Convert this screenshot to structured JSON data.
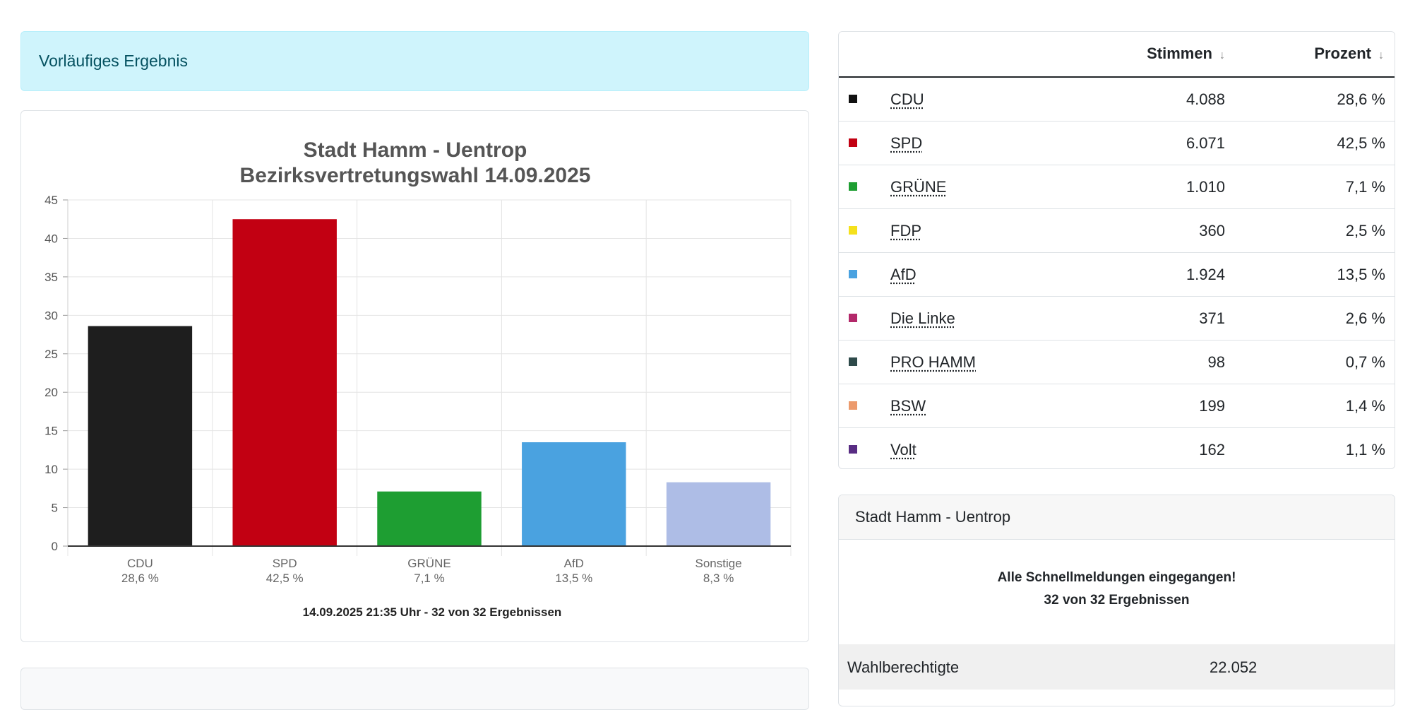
{
  "alert": {
    "text": "Vorläufiges Ergebnis"
  },
  "chart_data": {
    "type": "bar",
    "title": "Stadt Hamm - Uentrop",
    "subtitle": "Bezirksvertretungswahl 14.09.2025",
    "categories": [
      "CDU",
      "SPD",
      "GRÜNE",
      "AfD",
      "Sonstige"
    ],
    "category_sublabels": [
      "28,6 %",
      "42,5 %",
      "7,1 %",
      "13,5 %",
      "8,3 %"
    ],
    "values": [
      28.6,
      42.5,
      7.1,
      13.5,
      8.3
    ],
    "colors": [
      "#1e1e1e",
      "#c20012",
      "#1e9e32",
      "#4aa2e0",
      "#aebde6"
    ],
    "ylim": [
      0,
      45
    ],
    "yticks": [
      0,
      5,
      10,
      15,
      20,
      25,
      30,
      35,
      40,
      45
    ],
    "grid": true,
    "footer": "14.09.2025 21:35 Uhr - 32 von 32 Ergebnissen"
  },
  "table": {
    "col_votes": "Stimmen",
    "col_pct": "Prozent",
    "sort_icon": "↓",
    "rows": [
      {
        "party": "CDU",
        "votes": "4.088",
        "pct": "28,6 %",
        "color": "#111111"
      },
      {
        "party": "SPD",
        "votes": "6.071",
        "pct": "42,5 %",
        "color": "#c20012"
      },
      {
        "party": "GRÜNE",
        "votes": "1.010",
        "pct": "7,1 %",
        "color": "#1e9e32"
      },
      {
        "party": "FDP",
        "votes": "360",
        "pct": "2,5 %",
        "color": "#f5e11c"
      },
      {
        "party": "AfD",
        "votes": "1.924",
        "pct": "13,5 %",
        "color": "#4aa2e0"
      },
      {
        "party": "Die Linke",
        "votes": "371",
        "pct": "2,6 %",
        "color": "#b3286a"
      },
      {
        "party": "PRO HAMM",
        "votes": "98",
        "pct": "0,7 %",
        "color": "#2e4a4a"
      },
      {
        "party": "BSW",
        "votes": "199",
        "pct": "1,4 %",
        "color": "#ec9a6c"
      },
      {
        "party": "Volt",
        "votes": "162",
        "pct": "1,1 %",
        "color": "#582c83"
      }
    ]
  },
  "info": {
    "header": "Stadt Hamm - Uentrop",
    "message_line1": "Alle Schnellmeldungen eingegangen!",
    "message_line2": "32 von 32 Ergebnissen",
    "eligible_label": "Wahlberechtigte",
    "eligible_value": "22.052"
  }
}
